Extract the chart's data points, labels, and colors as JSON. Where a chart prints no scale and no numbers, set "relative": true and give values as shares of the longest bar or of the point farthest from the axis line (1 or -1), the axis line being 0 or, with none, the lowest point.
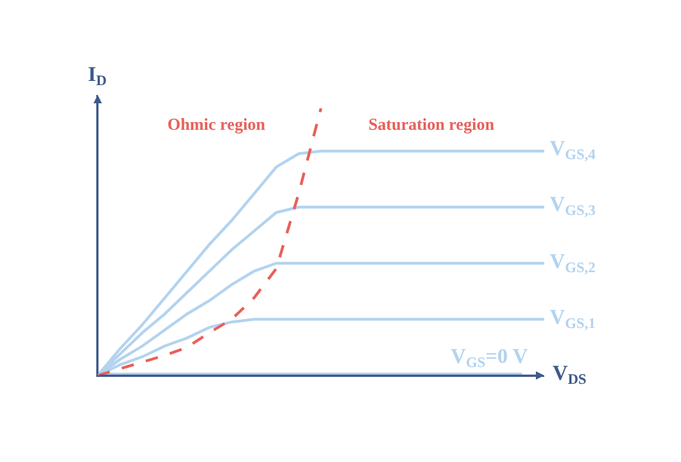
{
  "chart_data": {
    "type": "line",
    "relative": true,
    "xlabel": "V$_{DS}$",
    "ylabel": "I$_{D}$",
    "categories": [
      null,
      null,
      null,
      null,
      null,
      null,
      null,
      null,
      null,
      null,
      null,
      null,
      null,
      null,
      null,
      null,
      null,
      null,
      null,
      null,
      null
    ],
    "legend": false,
    "grid": false,
    "marker": "none",
    "annotations": [
      {
        "text": "Ohmic region"
      },
      {
        "text": "Saturation region"
      }
    ],
    "series": [
      {
        "name": "V$_{GS,4}$",
        "color": "#b3d3ef",
        "line_style": "solid",
        "values": [
          0,
          0.1,
          0.19,
          0.29,
          0.39,
          0.49,
          0.58,
          0.68,
          0.78,
          0.83,
          0.84,
          0.84,
          0.84,
          0.84,
          0.84,
          0.84,
          0.84,
          0.84,
          0.84,
          0.84,
          0.84
        ]
      },
      {
        "name": "V$_{GS,3}$",
        "color": "#b3d3ef",
        "line_style": "solid",
        "values": [
          0,
          0.08,
          0.16,
          0.23,
          0.31,
          0.39,
          0.47,
          0.54,
          0.61,
          0.63,
          0.63,
          0.63,
          0.63,
          0.63,
          0.63,
          0.63,
          0.63,
          0.63,
          0.63,
          0.63,
          0.63
        ]
      },
      {
        "name": "V$_{GS,2}$",
        "color": "#b3d3ef",
        "line_style": "solid",
        "values": [
          0,
          0.06,
          0.11,
          0.17,
          0.23,
          0.28,
          0.34,
          0.39,
          0.42,
          0.42,
          0.42,
          0.42,
          0.42,
          0.42,
          0.42,
          0.42,
          0.42,
          0.42,
          0.42,
          0.42,
          0.42
        ]
      },
      {
        "name": "V$_{GS,1}$",
        "color": "#b3d3ef",
        "line_style": "solid",
        "values": [
          0,
          0.04,
          0.07,
          0.11,
          0.14,
          0.18,
          0.2,
          0.21,
          0.21,
          0.21,
          0.21,
          0.21,
          0.21,
          0.21,
          0.21,
          0.21,
          0.21,
          0.21,
          0.21,
          0.21,
          0.21
        ]
      },
      {
        "name": "V$_{GS}$=0 V",
        "color": "#b3d3ef",
        "line_style": "solid",
        "values": [
          0.005,
          0.005,
          0.005,
          0.005,
          0.005,
          0.005,
          0.005,
          0.005,
          0.005,
          0.005,
          0.005,
          0.005,
          0.005,
          0.005,
          0.005,
          0.005,
          0.005,
          0.005,
          0.005,
          0.005,
          null
        ]
      },
      {
        "color": "#e8605a",
        "line_style": "dashed",
        "values": [
          0,
          0.025,
          0.05,
          0.075,
          0.105,
          0.16,
          0.21,
          0.29,
          0.4,
          0.68,
          1.0,
          null,
          null,
          null,
          null,
          null,
          null,
          null,
          null,
          null,
          null
        ]
      }
    ]
  }
}
